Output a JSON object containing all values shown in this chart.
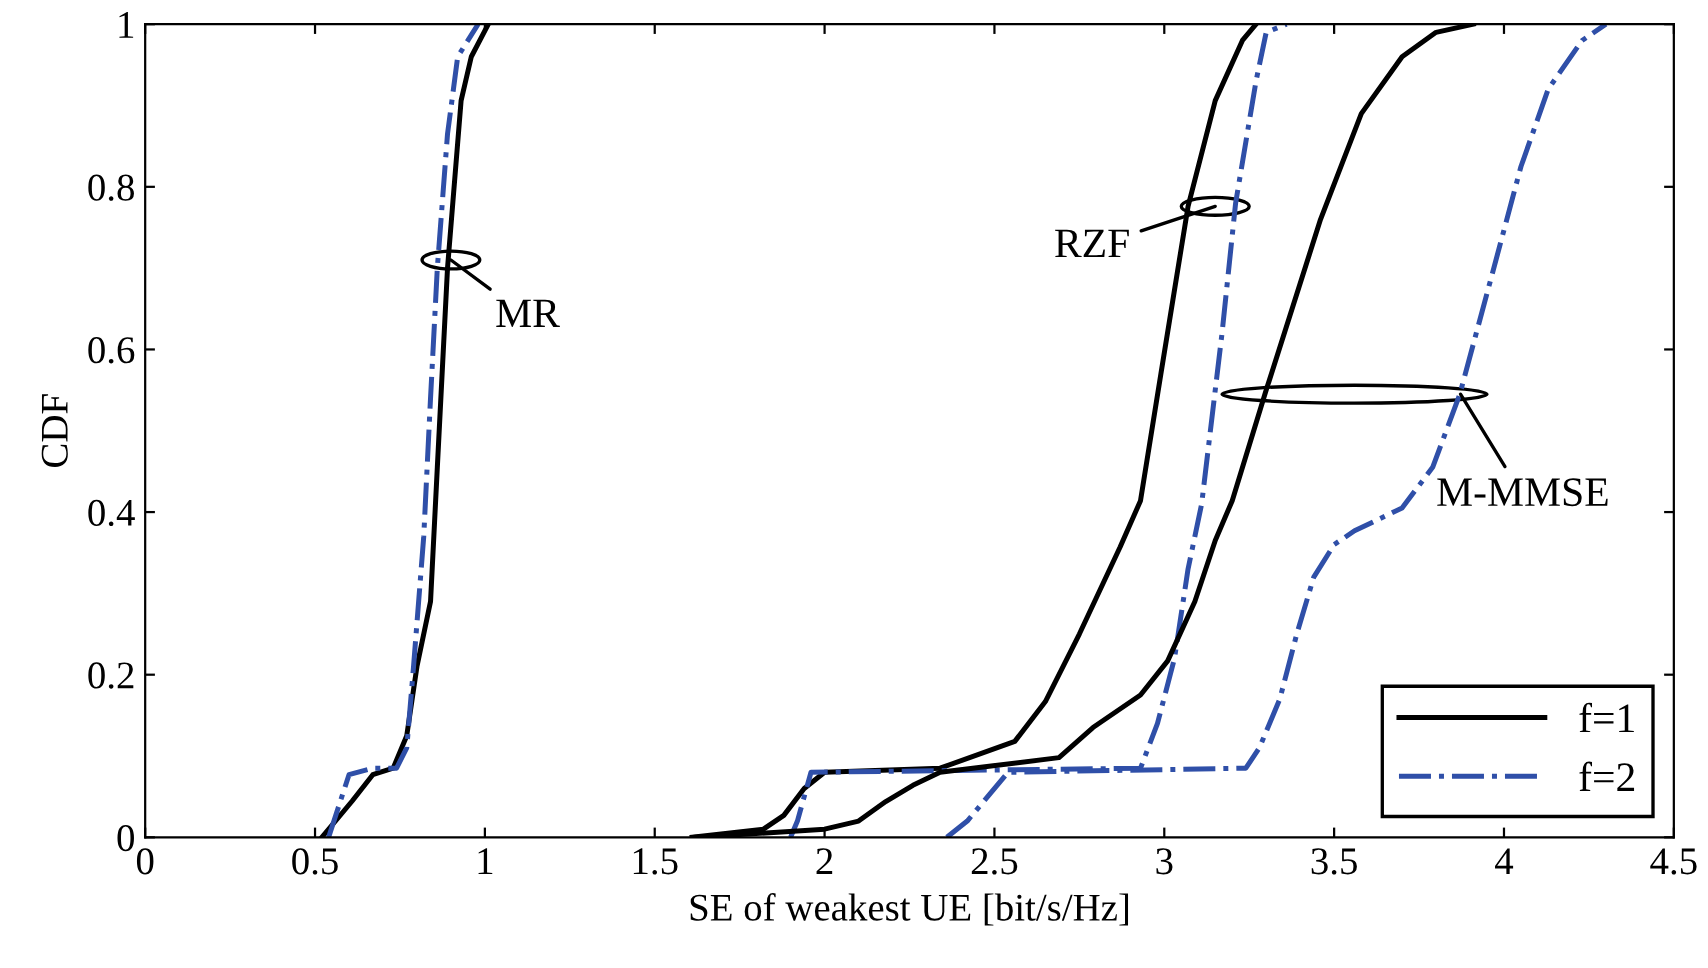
{
  "chart_data": {
    "type": "line",
    "xlabel": "SE of weakest UE [bit/s/Hz]",
    "ylabel": "CDF",
    "xlim": [
      0,
      4.5
    ],
    "ylim": [
      0,
      1
    ],
    "xticks": [
      0,
      0.5,
      1,
      1.5,
      2,
      2.5,
      3,
      3.5,
      4,
      4.5
    ],
    "yticks": [
      0,
      0.2,
      0.4,
      0.6,
      0.8,
      1
    ],
    "grid": false,
    "legend": "bottom right",
    "marker": "none",
    "series": [
      {
        "name": "f=1",
        "color": "#000000",
        "line_style": "solid",
        "x": [
          0.52,
          0.61,
          0.67,
          0.73,
          0.77,
          0.8,
          0.84,
          0.86,
          0.89,
          0.93,
          0.96,
          1.01
        ],
        "values": [
          0,
          0.045,
          0.077,
          0.085,
          0.125,
          0.21,
          0.29,
          0.455,
          0.7,
          0.906,
          0.96,
          1
        ]
      },
      {
        "name": "f=2",
        "color": "#2f4fa8",
        "line_style": "dashdot",
        "x": [
          0.54,
          0.6,
          0.67,
          0.74,
          0.77,
          0.79,
          0.82,
          0.84,
          0.86,
          0.89,
          0.92,
          0.98
        ],
        "values": [
          0,
          0.077,
          0.085,
          0.085,
          0.11,
          0.21,
          0.37,
          0.54,
          0.7,
          0.865,
          0.96,
          1
        ]
      },
      {
        "color": "#000000",
        "line_style": "solid",
        "x": [
          1.61,
          1.82,
          1.88,
          1.94,
          2.0,
          2.34,
          2.56,
          2.65,
          2.75,
          2.87,
          2.93,
          2.99,
          3.07,
          3.15,
          3.23,
          3.27
        ],
        "values": [
          0,
          0.01,
          0.027,
          0.06,
          0.08,
          0.085,
          0.118,
          0.167,
          0.25,
          0.357,
          0.414,
          0.57,
          0.776,
          0.906,
          0.98,
          1
        ]
      },
      {
        "color": "#2f4fa8",
        "line_style": "dashdot",
        "x": [
          1.9,
          1.92,
          1.96,
          2.93,
          2.98,
          3.03,
          3.07,
          3.11,
          3.17,
          3.21,
          3.27,
          3.3,
          3.36
        ],
        "values": [
          0,
          0.02,
          0.08,
          0.085,
          0.14,
          0.22,
          0.33,
          0.41,
          0.62,
          0.78,
          0.93,
          0.99,
          1
        ]
      },
      {
        "color": "#000000",
        "line_style": "solid",
        "x": [
          1.62,
          2.0,
          2.1,
          2.18,
          2.26,
          2.34,
          2.69,
          2.79,
          2.93,
          3.01,
          3.09,
          3.15,
          3.2,
          3.3,
          3.46,
          3.58,
          3.7,
          3.8,
          3.91
        ],
        "values": [
          0,
          0.01,
          0.02,
          0.044,
          0.064,
          0.08,
          0.098,
          0.135,
          0.175,
          0.217,
          0.29,
          0.365,
          0.414,
          0.55,
          0.76,
          0.89,
          0.96,
          0.99,
          1
        ]
      },
      {
        "color": "#2f4fa8",
        "line_style": "dashdot",
        "x": [
          2.36,
          2.42,
          2.48,
          2.54,
          3.24,
          3.28,
          3.34,
          3.39,
          3.44,
          3.5,
          3.56,
          3.7,
          3.79,
          3.87,
          3.97,
          4.05,
          4.13,
          4.23,
          4.3
        ],
        "values": [
          0,
          0.02,
          0.05,
          0.08,
          0.085,
          0.11,
          0.17,
          0.25,
          0.32,
          0.36,
          0.377,
          0.405,
          0.455,
          0.545,
          0.7,
          0.825,
          0.92,
          0.98,
          1
        ]
      }
    ],
    "annotations": [
      {
        "text": "MR",
        "x": 0.9,
        "y": 0.71
      },
      {
        "text": "RZF",
        "x": 3.07,
        "y": 0.776
      },
      {
        "text": "M-MMSE",
        "x": 3.87,
        "y": 0.545
      }
    ]
  }
}
